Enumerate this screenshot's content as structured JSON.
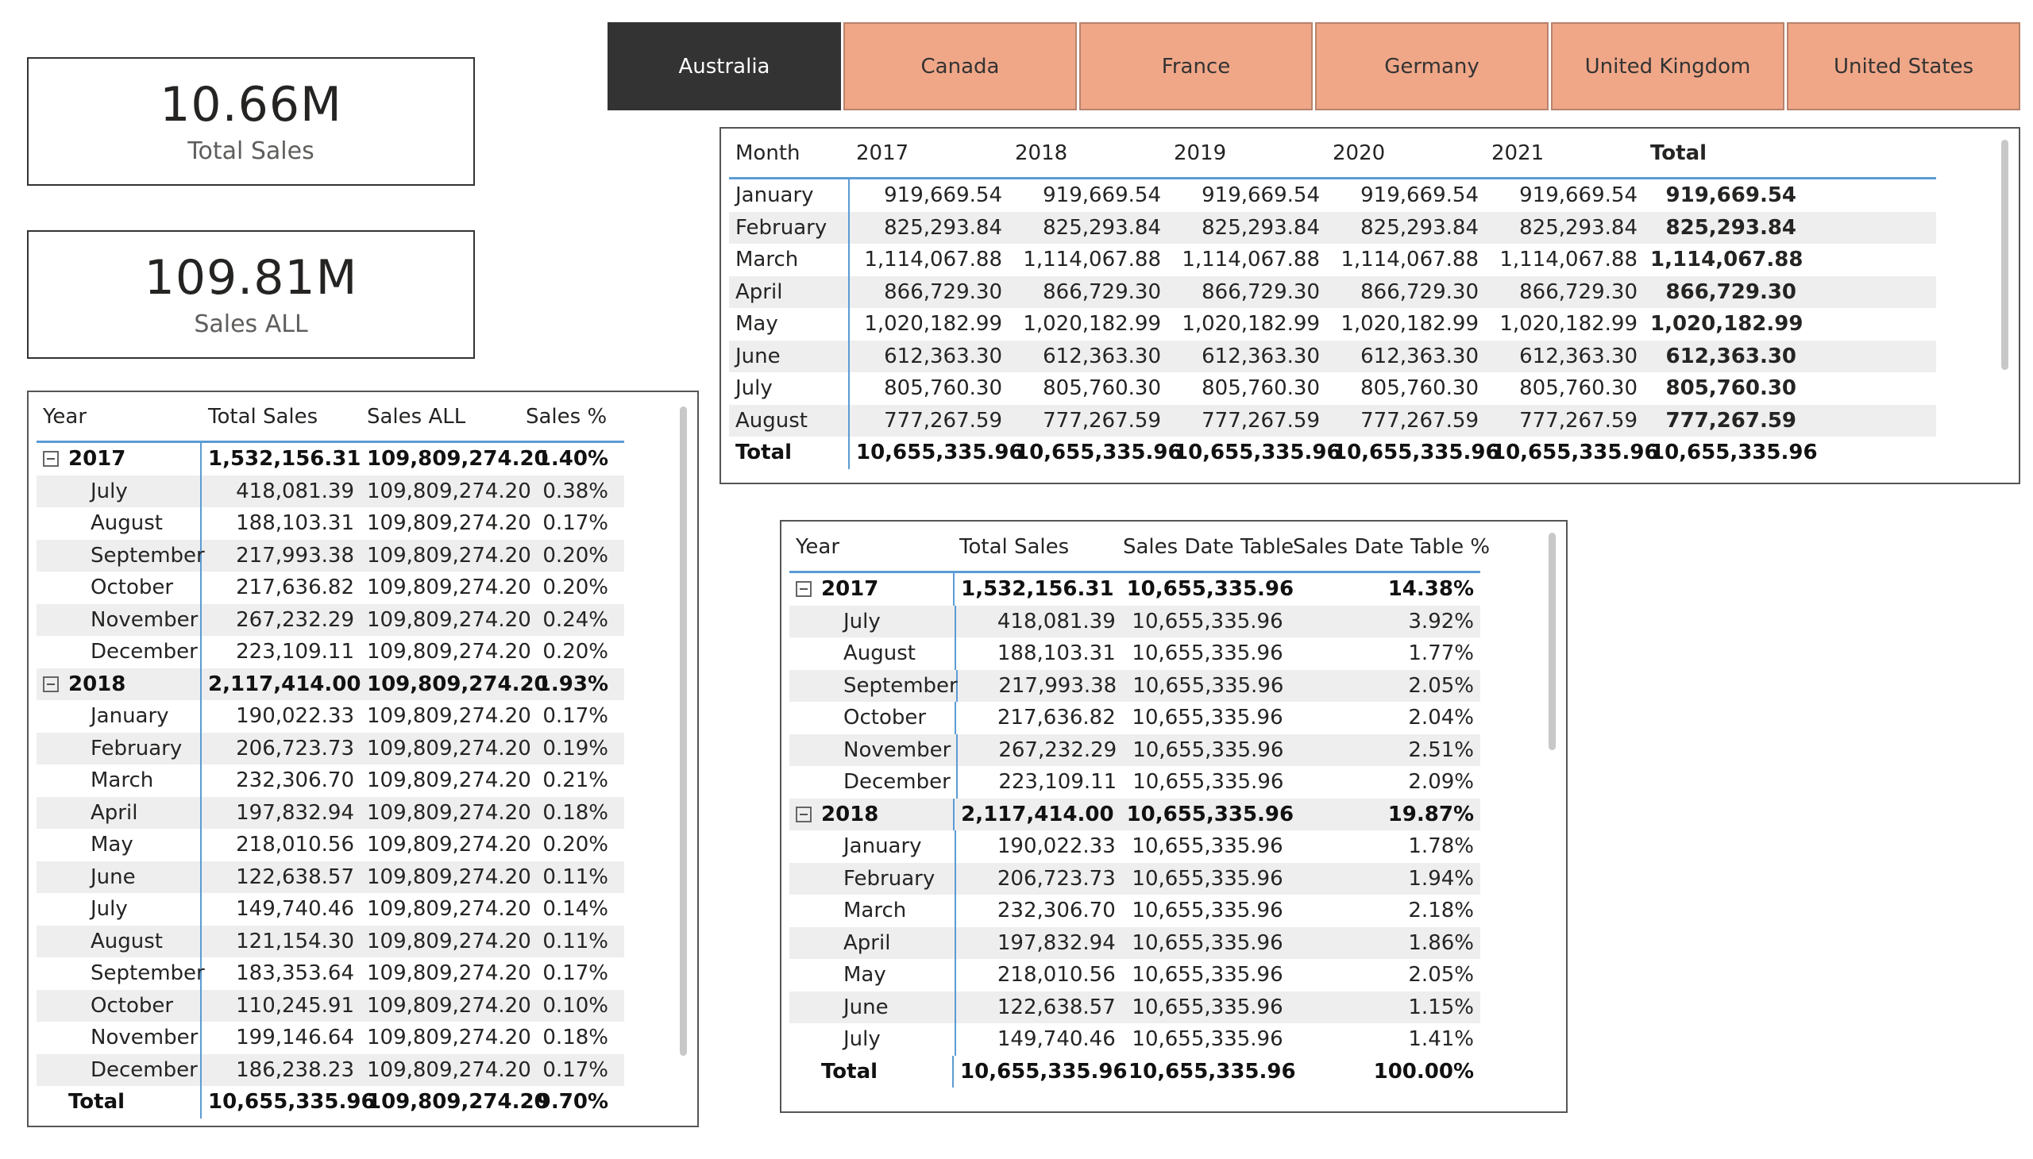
{
  "cards": [
    {
      "value": "10.66M",
      "label": "Total Sales"
    },
    {
      "value": "109.81M",
      "label": "Sales ALL"
    }
  ],
  "slicer": {
    "options": [
      "Australia",
      "Canada",
      "France",
      "Germany",
      "United Kingdom",
      "United States"
    ],
    "selected": "Australia"
  },
  "table1": {
    "headers": [
      "Year",
      "Total Sales",
      "Sales ALL",
      "Sales %"
    ],
    "rows": [
      {
        "label": "2017",
        "group": true,
        "v": [
          "1,532,156.31",
          "109,809,274.20",
          "1.40%"
        ]
      },
      {
        "label": "July",
        "v": [
          "418,081.39",
          "109,809,274.20",
          "0.38%"
        ]
      },
      {
        "label": "August",
        "v": [
          "188,103.31",
          "109,809,274.20",
          "0.17%"
        ]
      },
      {
        "label": "September",
        "v": [
          "217,993.38",
          "109,809,274.20",
          "0.20%"
        ]
      },
      {
        "label": "October",
        "v": [
          "217,636.82",
          "109,809,274.20",
          "0.20%"
        ]
      },
      {
        "label": "November",
        "v": [
          "267,232.29",
          "109,809,274.20",
          "0.24%"
        ]
      },
      {
        "label": "December",
        "v": [
          "223,109.11",
          "109,809,274.20",
          "0.20%"
        ]
      },
      {
        "label": "2018",
        "group": true,
        "v": [
          "2,117,414.00",
          "109,809,274.20",
          "1.93%"
        ]
      },
      {
        "label": "January",
        "v": [
          "190,022.33",
          "109,809,274.20",
          "0.17%"
        ]
      },
      {
        "label": "February",
        "v": [
          "206,723.73",
          "109,809,274.20",
          "0.19%"
        ]
      },
      {
        "label": "March",
        "v": [
          "232,306.70",
          "109,809,274.20",
          "0.21%"
        ]
      },
      {
        "label": "April",
        "v": [
          "197,832.94",
          "109,809,274.20",
          "0.18%"
        ]
      },
      {
        "label": "May",
        "v": [
          "218,010.56",
          "109,809,274.20",
          "0.20%"
        ]
      },
      {
        "label": "June",
        "v": [
          "122,638.57",
          "109,809,274.20",
          "0.11%"
        ]
      },
      {
        "label": "July",
        "v": [
          "149,740.46",
          "109,809,274.20",
          "0.14%"
        ]
      },
      {
        "label": "August",
        "v": [
          "121,154.30",
          "109,809,274.20",
          "0.11%"
        ]
      },
      {
        "label": "September",
        "v": [
          "183,353.64",
          "109,809,274.20",
          "0.17%"
        ]
      },
      {
        "label": "October",
        "v": [
          "110,245.91",
          "109,809,274.20",
          "0.10%"
        ]
      },
      {
        "label": "November",
        "v": [
          "199,146.64",
          "109,809,274.20",
          "0.18%"
        ]
      },
      {
        "label": "December",
        "v": [
          "186,238.23",
          "109,809,274.20",
          "0.17%"
        ]
      }
    ],
    "total": {
      "label": "Total",
      "v": [
        "10,655,335.96",
        "109,809,274.20",
        "9.70%"
      ]
    }
  },
  "table2": {
    "headers": [
      "Month",
      "2017",
      "2018",
      "2019",
      "2020",
      "2021",
      "Total"
    ],
    "rows": [
      {
        "label": "January",
        "v": [
          "919,669.54",
          "919,669.54",
          "919,669.54",
          "919,669.54",
          "919,669.54",
          "919,669.54"
        ]
      },
      {
        "label": "February",
        "v": [
          "825,293.84",
          "825,293.84",
          "825,293.84",
          "825,293.84",
          "825,293.84",
          "825,293.84"
        ]
      },
      {
        "label": "March",
        "v": [
          "1,114,067.88",
          "1,114,067.88",
          "1,114,067.88",
          "1,114,067.88",
          "1,114,067.88",
          "1,114,067.88"
        ]
      },
      {
        "label": "April",
        "v": [
          "866,729.30",
          "866,729.30",
          "866,729.30",
          "866,729.30",
          "866,729.30",
          "866,729.30"
        ]
      },
      {
        "label": "May",
        "v": [
          "1,020,182.99",
          "1,020,182.99",
          "1,020,182.99",
          "1,020,182.99",
          "1,020,182.99",
          "1,020,182.99"
        ]
      },
      {
        "label": "June",
        "v": [
          "612,363.30",
          "612,363.30",
          "612,363.30",
          "612,363.30",
          "612,363.30",
          "612,363.30"
        ]
      },
      {
        "label": "July",
        "v": [
          "805,760.30",
          "805,760.30",
          "805,760.30",
          "805,760.30",
          "805,760.30",
          "805,760.30"
        ]
      },
      {
        "label": "August",
        "v": [
          "777,267.59",
          "777,267.59",
          "777,267.59",
          "777,267.59",
          "777,267.59",
          "777,267.59"
        ]
      }
    ],
    "total": {
      "label": "Total",
      "v": [
        "10,655,335.96",
        "10,655,335.96",
        "10,655,335.96",
        "10,655,335.96",
        "10,655,335.96",
        "10,655,335.96"
      ]
    }
  },
  "table3": {
    "headers": [
      "Year",
      "Total Sales",
      "Sales Date Table",
      "Sales Date Table %"
    ],
    "rows": [
      {
        "label": "2017",
        "group": true,
        "v": [
          "1,532,156.31",
          "10,655,335.96",
          "14.38%"
        ]
      },
      {
        "label": "July",
        "v": [
          "418,081.39",
          "10,655,335.96",
          "3.92%"
        ]
      },
      {
        "label": "August",
        "v": [
          "188,103.31",
          "10,655,335.96",
          "1.77%"
        ]
      },
      {
        "label": "September",
        "v": [
          "217,993.38",
          "10,655,335.96",
          "2.05%"
        ]
      },
      {
        "label": "October",
        "v": [
          "217,636.82",
          "10,655,335.96",
          "2.04%"
        ]
      },
      {
        "label": "November",
        "v": [
          "267,232.29",
          "10,655,335.96",
          "2.51%"
        ]
      },
      {
        "label": "December",
        "v": [
          "223,109.11",
          "10,655,335.96",
          "2.09%"
        ]
      },
      {
        "label": "2018",
        "group": true,
        "v": [
          "2,117,414.00",
          "10,655,335.96",
          "19.87%"
        ]
      },
      {
        "label": "January",
        "v": [
          "190,022.33",
          "10,655,335.96",
          "1.78%"
        ]
      },
      {
        "label": "February",
        "v": [
          "206,723.73",
          "10,655,335.96",
          "1.94%"
        ]
      },
      {
        "label": "March",
        "v": [
          "232,306.70",
          "10,655,335.96",
          "2.18%"
        ]
      },
      {
        "label": "April",
        "v": [
          "197,832.94",
          "10,655,335.96",
          "1.86%"
        ]
      },
      {
        "label": "May",
        "v": [
          "218,010.56",
          "10,655,335.96",
          "2.05%"
        ]
      },
      {
        "label": "June",
        "v": [
          "122,638.57",
          "10,655,335.96",
          "1.15%"
        ]
      },
      {
        "label": "July",
        "v": [
          "149,740.46",
          "10,655,335.96",
          "1.41%"
        ]
      }
    ],
    "total": {
      "label": "Total",
      "v": [
        "10,655,335.96",
        "10,655,335.96",
        "100.00%"
      ]
    }
  }
}
